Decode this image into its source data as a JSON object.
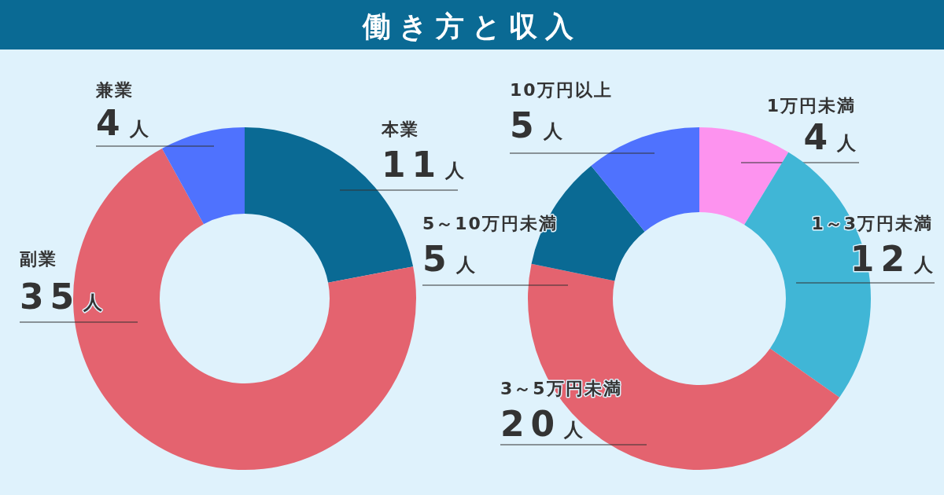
{
  "chart_data": [
    {
      "type": "donut",
      "title": "働き方と収入",
      "categories": [
        "本業",
        "副業",
        "兼業"
      ],
      "values": [
        11,
        35,
        4
      ],
      "colors": [
        "#0a6a94",
        "#e4636f",
        "#4f72fe"
      ],
      "value_labels": [
        "11人",
        "35人",
        "4人"
      ]
    },
    {
      "type": "donut",
      "categories": [
        "1万円未満",
        "1～3万円未満",
        "3～5万円未満",
        "5～10万円未満",
        "10万円以上"
      ],
      "values": [
        4,
        12,
        20,
        5,
        5
      ],
      "colors": [
        "#fd93ef",
        "#40b6d6",
        "#e4636f",
        "#0a6a94",
        "#4f72fe"
      ],
      "value_labels": [
        "4人",
        "12人",
        "20人",
        "5人",
        "5人"
      ]
    }
  ]
}
